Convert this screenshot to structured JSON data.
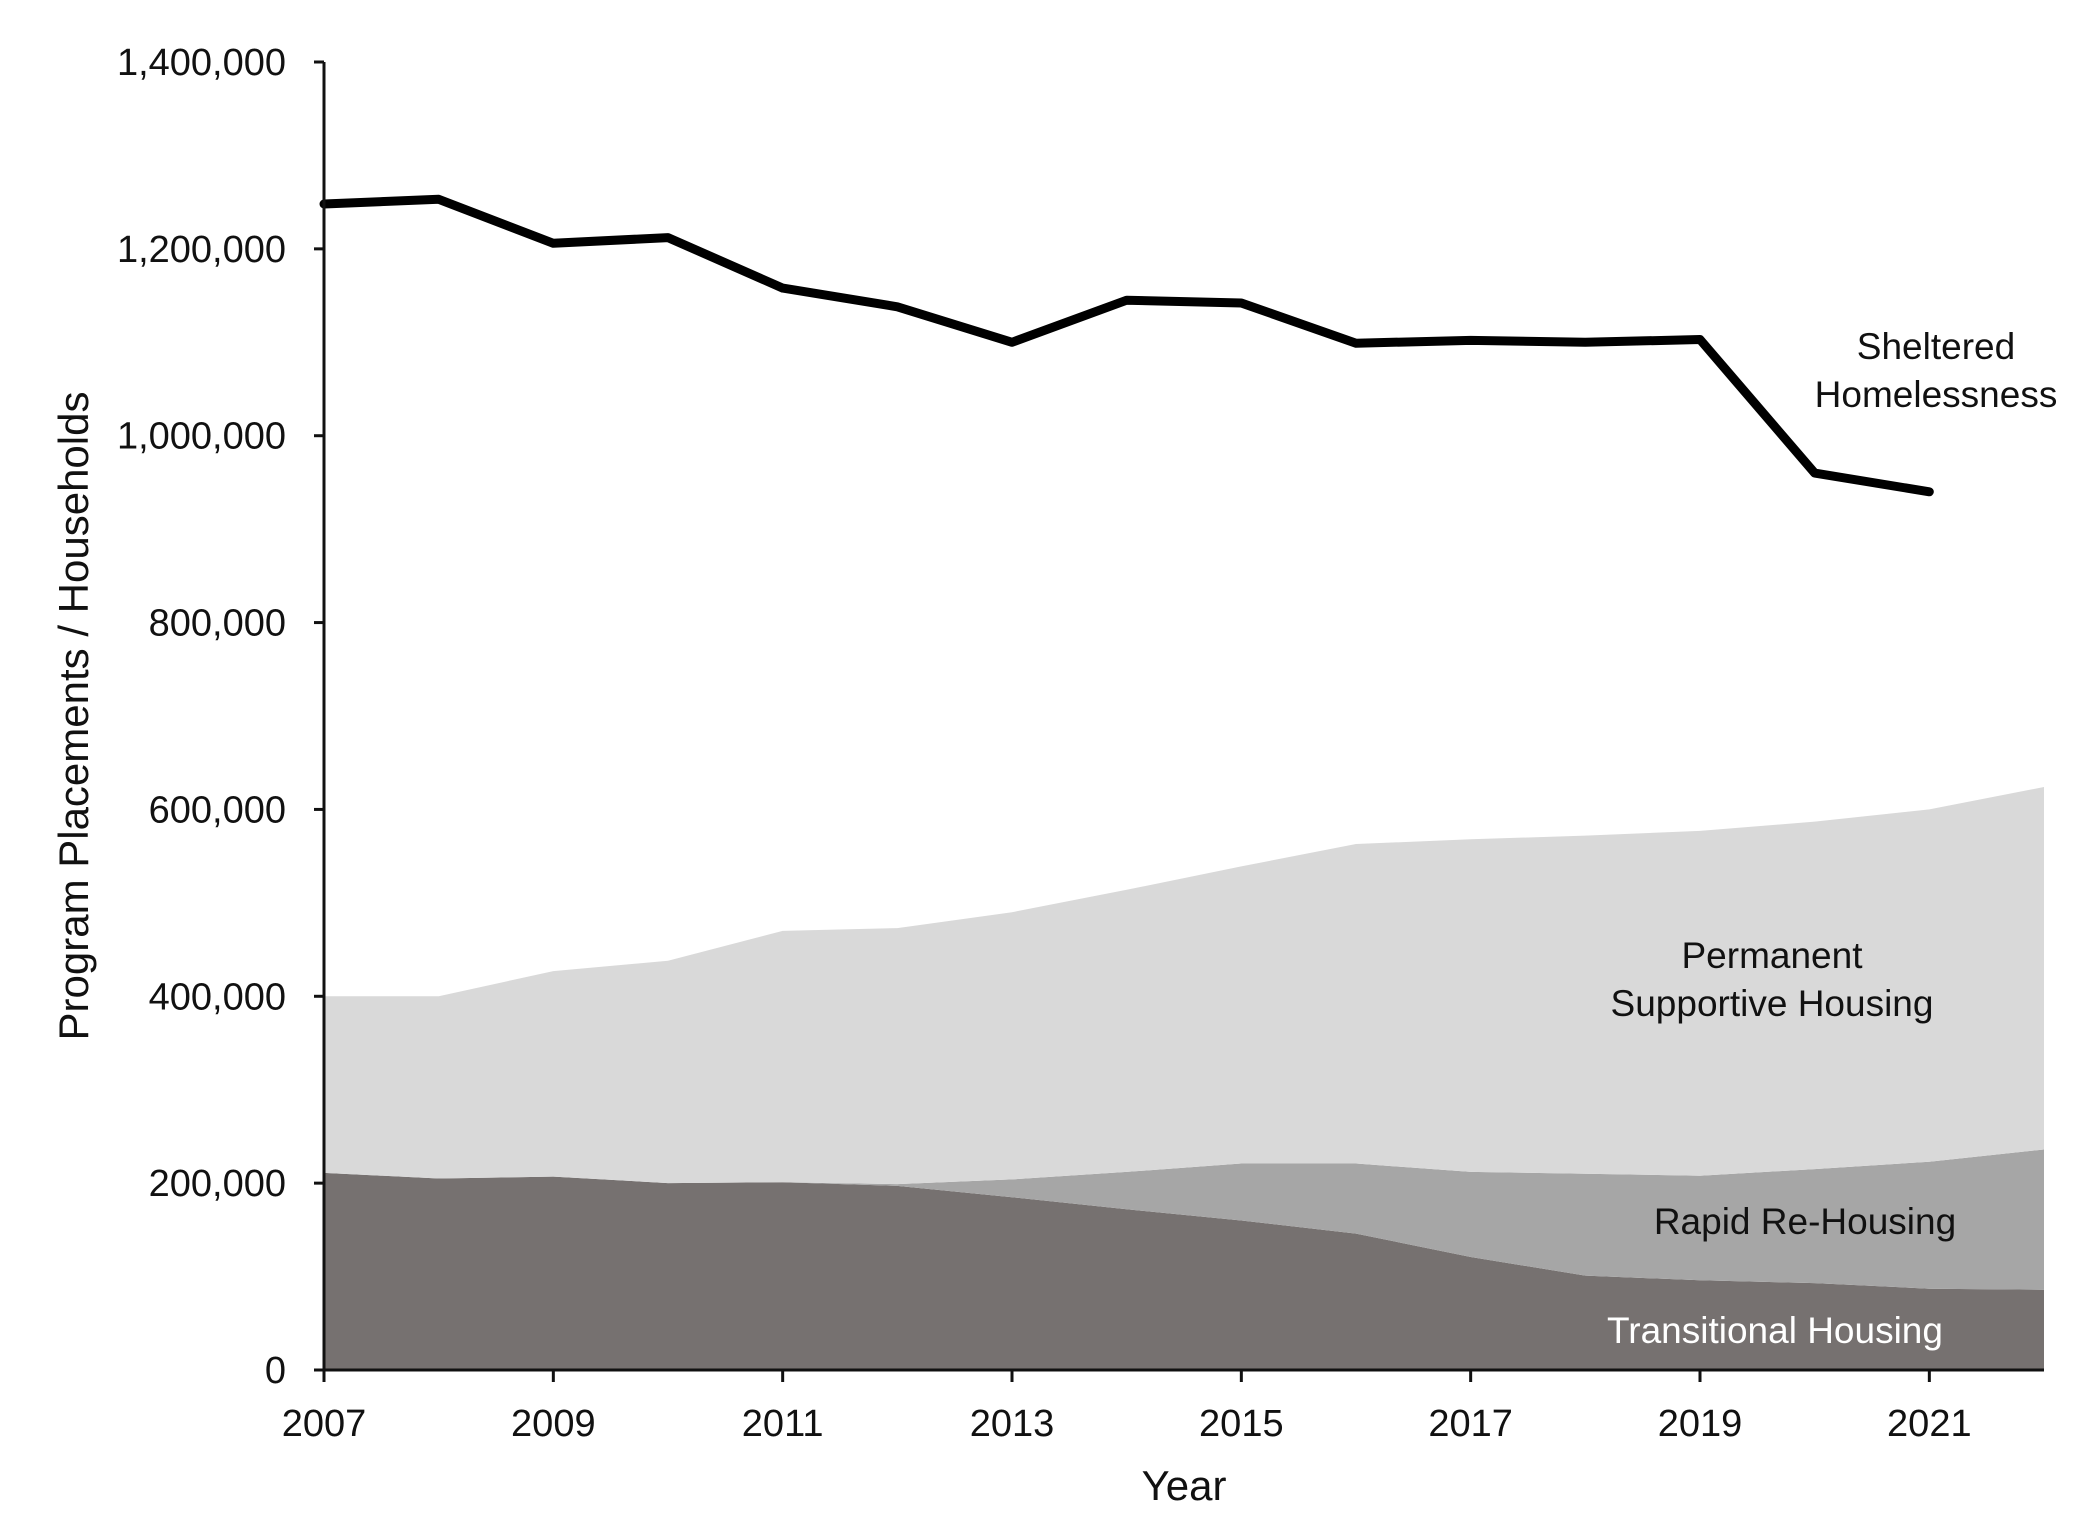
{
  "chart_data": {
    "type": "area",
    "title": "",
    "xlabel": "Year",
    "ylabel": "Program Placements / Households",
    "xlim": [
      2007,
      2022
    ],
    "ylim": [
      0,
      1400000
    ],
    "x_ticks": [
      "2007",
      "2009",
      "2011",
      "2013",
      "2015",
      "2017",
      "2019",
      "2021"
    ],
    "y_ticks": [
      "0",
      "200,000",
      "400,000",
      "600,000",
      "800,000",
      "1,000,000",
      "1,200,000",
      "1,400,000"
    ],
    "grid": false,
    "stacked_areas": [
      {
        "name": "Transitional Housing",
        "label_lines": [
          "Transitional Housing"
        ],
        "color": "#767170",
        "label_color": "#ffffff",
        "x": [
          2007,
          2008,
          2009,
          2010,
          2011,
          2012,
          2013,
          2014,
          2015,
          2016,
          2017,
          2018,
          2019,
          2020,
          2021,
          2022
        ],
        "values": [
          211000,
          205000,
          207000,
          200000,
          201000,
          197000,
          185000,
          172000,
          160000,
          146000,
          121000,
          101000,
          96000,
          93000,
          87000,
          86000
        ]
      },
      {
        "name": "Rapid Re-Housing",
        "label_lines": [
          "Rapid Re-Housing"
        ],
        "color": "#a6a6a6",
        "label_color": "#111111",
        "x": [
          2007,
          2008,
          2009,
          2010,
          2011,
          2012,
          2013,
          2014,
          2015,
          2016,
          2017,
          2018,
          2019,
          2020,
          2021,
          2022
        ],
        "values": [
          0,
          0,
          0,
          0,
          0,
          2000,
          19000,
          40000,
          61000,
          75000,
          91000,
          109000,
          112000,
          122000,
          136000,
          150000
        ]
      },
      {
        "name": "Permanent Supportive Housing",
        "label_lines": [
          "Permanent",
          "Supportive Housing"
        ],
        "color": "#d9d9d9",
        "label_color": "#111111",
        "x": [
          2007,
          2008,
          2009,
          2010,
          2011,
          2012,
          2013,
          2014,
          2015,
          2016,
          2017,
          2018,
          2019,
          2020,
          2021,
          2022
        ],
        "values": [
          189000,
          195000,
          220000,
          238000,
          269000,
          274000,
          286000,
          302000,
          318000,
          342000,
          356000,
          362000,
          369000,
          372000,
          377000,
          388000
        ]
      }
    ],
    "line_series": [
      {
        "name": "Sheltered Homelessness",
        "label_lines": [
          "Sheltered",
          "Homelessness"
        ],
        "color": "#000000",
        "x": [
          2007,
          2008,
          2009,
          2010,
          2011,
          2012,
          2013,
          2014,
          2015,
          2016,
          2017,
          2018,
          2019,
          2020,
          2021
        ],
        "values": [
          1248000,
          1253000,
          1206000,
          1212000,
          1158000,
          1138000,
          1100000,
          1145000,
          1142000,
          1099000,
          1102000,
          1100000,
          1103000,
          960000,
          940000
        ]
      }
    ]
  }
}
